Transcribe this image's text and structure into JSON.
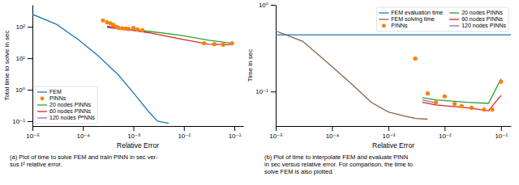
{
  "chart_data": [
    {
      "type": "line",
      "xlabel": "Relative Error",
      "ylabel": "Total time to solve in sec",
      "annotations": [
        "(a) Plot of time to solve FEM and train PINN in sec ver-\nsus ℓ² relative error."
      ],
      "log": true,
      "grid": false,
      "legend": "lower left",
      "xlim": [
        1e-05,
        0.15
      ],
      "ylim": [
        0.07,
        500
      ],
      "xticks": [
        {
          "value": 1e-05,
          "label": "10⁻⁵"
        },
        {
          "value": 0.0001,
          "label": "10⁻⁴"
        },
        {
          "value": 0.001,
          "label": "10⁻³"
        },
        {
          "value": 0.01,
          "label": "10⁻²"
        },
        {
          "value": 0.1,
          "label": "10⁻¹"
        }
      ],
      "yticks": [
        {
          "value": 0.1,
          "label": "10⁻¹"
        },
        {
          "value": 1,
          "label": "10⁰"
        },
        {
          "value": 10,
          "label": "10¹"
        },
        {
          "value": 100,
          "label": "10²"
        }
      ],
      "series": [
        {
          "name": "FEM",
          "type": "line",
          "color": "#1f77b4",
          "x": [
            1e-05,
            3e-05,
            8e-05,
            0.0002,
            0.0005,
            0.001,
            0.002,
            0.003,
            0.005
          ],
          "values": [
            250,
            120,
            40,
            12,
            3.0,
            0.8,
            0.2,
            0.1,
            0.085
          ]
        },
        {
          "name": "PINNs",
          "type": "scatter",
          "color": "#ff7f0e",
          "x": [
            0.00025,
            0.0003,
            0.00035,
            0.0004,
            0.00045,
            0.0005,
            0.0006,
            0.0007,
            0.0008,
            0.001,
            0.0012,
            0.0015,
            0.025,
            0.04,
            0.06,
            0.09
          ],
          "values": [
            160,
            140,
            130,
            115,
            100,
            95,
            90,
            88,
            85,
            92,
            82,
            78,
            30,
            28,
            27,
            30
          ]
        },
        {
          "name": "20 nodes PINNs",
          "type": "line",
          "color": "#2ca02c",
          "x": [
            0.0003,
            0.0005,
            0.0008,
            0.002,
            0.008,
            0.03,
            0.09
          ],
          "values": [
            100,
            88,
            82,
            72,
            55,
            38,
            30
          ]
        },
        {
          "name": "60 nodes PINNs",
          "type": "line",
          "color": "#d62728",
          "x": [
            0.0003,
            0.0005,
            0.0008,
            0.002,
            0.008,
            0.03,
            0.09
          ],
          "values": [
            105,
            90,
            80,
            65,
            42,
            28,
            27
          ]
        },
        {
          "name": "120 nodes PᴿNNs",
          "type": "line",
          "color": "#9467bd",
          "x": [
            0.0003,
            0.0005,
            0.0008,
            0.0015
          ],
          "values": [
            95,
            86,
            80,
            75
          ]
        }
      ]
    },
    {
      "type": "line",
      "xlabel": "Relative Error",
      "ylabel": "Time in sec",
      "annotations": [
        "(b) Plot of time to interpolate FEM and evaluate PINN\nin sec versus relative error.  For comparison, the time to\nsolve FEM is also plotted."
      ],
      "log": true,
      "grid": false,
      "legend": "upper right",
      "xlim": [
        1e-05,
        0.15
      ],
      "ylim": [
        0.04,
        1.0
      ],
      "xticks": [
        {
          "value": 1e-05,
          "label": "10⁻⁵"
        },
        {
          "value": 0.0001,
          "label": "10⁻⁴"
        },
        {
          "value": 0.001,
          "label": "10⁻³"
        },
        {
          "value": 0.01,
          "label": "10⁻²"
        },
        {
          "value": 0.1,
          "label": "10⁻¹"
        }
      ],
      "yticks": [
        {
          "value": 0.1,
          "label": "10⁻¹"
        },
        {
          "value": 1,
          "label": "10⁰"
        }
      ],
      "series": [
        {
          "name": "FEM evaluation time",
          "type": "line",
          "color": "#1f77b4",
          "x": [
            1e-05,
            0.15
          ],
          "values": [
            0.45,
            0.45
          ]
        },
        {
          "name": "FEM solving time",
          "type": "line",
          "color": "#8B6347",
          "x": [
            1e-05,
            3e-05,
            8e-05,
            0.0002,
            0.0005,
            0.001,
            0.002,
            0.003,
            0.005
          ],
          "values": [
            0.5,
            0.38,
            0.22,
            0.13,
            0.075,
            0.058,
            0.052,
            0.049,
            0.048
          ]
        },
        {
          "name": "PINNs",
          "type": "scatter",
          "color": "#ff7f0e",
          "x": [
            0.003,
            0.005,
            0.007,
            0.01,
            0.015,
            0.02,
            0.03,
            0.05,
            0.07,
            0.1
          ],
          "values": [
            0.24,
            0.095,
            0.075,
            0.088,
            0.072,
            0.068,
            0.065,
            0.062,
            0.062,
            0.13
          ]
        },
        {
          "name": "20 nodes PINNs",
          "type": "line",
          "color": "#2ca02c",
          "x": [
            0.004,
            0.007,
            0.012,
            0.025,
            0.06,
            0.1
          ],
          "values": [
            0.085,
            0.08,
            0.078,
            0.075,
            0.073,
            0.14
          ]
        },
        {
          "name": "60 nodes PINNs",
          "type": "line",
          "color": "#d62728",
          "x": [
            0.004,
            0.007,
            0.012,
            0.025,
            0.06,
            0.1
          ],
          "values": [
            0.075,
            0.07,
            0.068,
            0.065,
            0.06,
            0.09
          ]
        },
        {
          "name": "120 nodes PINNs",
          "type": "line",
          "color": "#9467bd",
          "x": [
            0.004,
            0.007
          ],
          "values": [
            0.08,
            0.074
          ]
        }
      ]
    }
  ]
}
